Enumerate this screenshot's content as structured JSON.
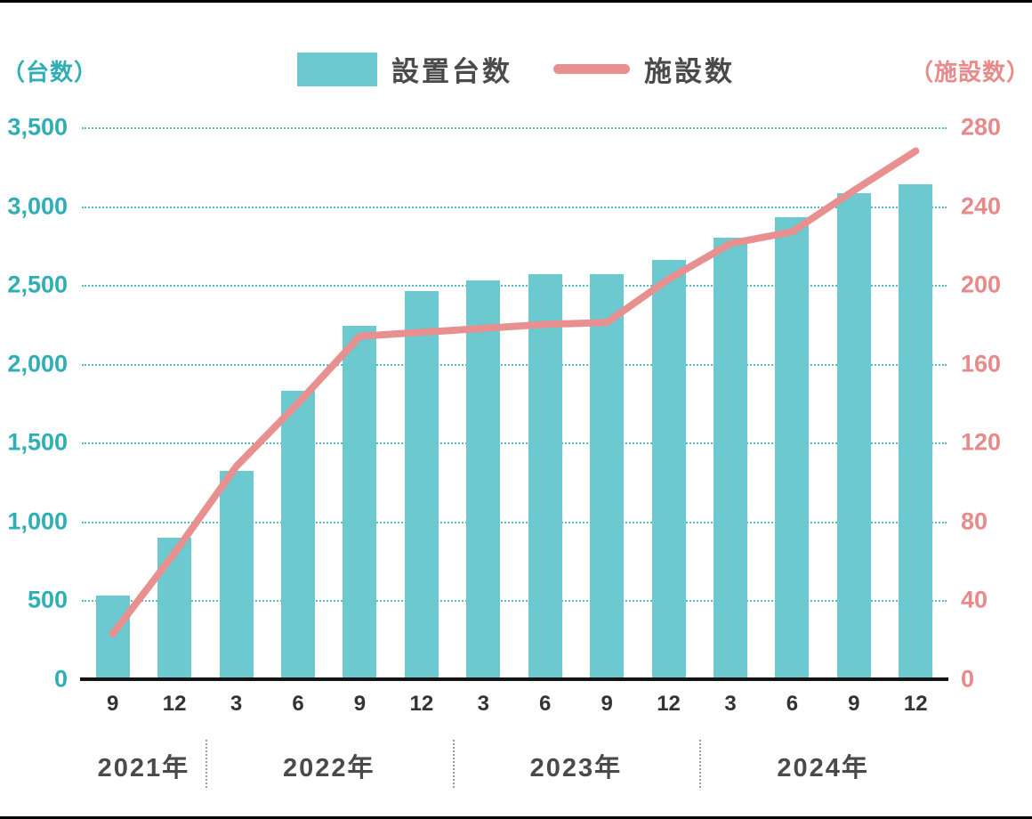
{
  "header": {
    "left_axis_title": "（台数）",
    "right_axis_title": "（施設数）"
  },
  "legend": [
    {
      "label": "設置台数",
      "type": "bar",
      "color": "#6CC9CF"
    },
    {
      "label": "施設数",
      "type": "line",
      "color": "#E89090"
    }
  ],
  "chart_data": {
    "type": "bar+line",
    "title": "",
    "categories": [
      "9",
      "12",
      "3",
      "6",
      "9",
      "12",
      "3",
      "6",
      "9",
      "12",
      "3",
      "6",
      "9",
      "12"
    ],
    "year_groups": [
      {
        "label": "2021年",
        "span": 2
      },
      {
        "label": "2022年",
        "span": 4
      },
      {
        "label": "2023年",
        "span": 4
      },
      {
        "label": "2024年",
        "span": 4
      }
    ],
    "series": [
      {
        "name": "設置台数",
        "type": "bar",
        "axis": "left",
        "color": "#6CC9CF",
        "values": [
          530,
          900,
          1320,
          1830,
          2240,
          2460,
          2530,
          2570,
          2570,
          2660,
          2800,
          2930,
          3080,
          3140
        ]
      },
      {
        "name": "施設数",
        "type": "line",
        "axis": "right",
        "color": "#E89090",
        "values": [
          23,
          64,
          108,
          140,
          174,
          176,
          178,
          180,
          181,
          203,
          221,
          227,
          248,
          268
        ]
      }
    ],
    "left_axis": {
      "title": "（台数）",
      "min": 0,
      "max": 3500,
      "step": 500,
      "ticks": [
        "0",
        "500",
        "1,000",
        "1,500",
        "2,000",
        "2,500",
        "3,000",
        "3,500"
      ],
      "color": "#2FAFB5"
    },
    "right_axis": {
      "title": "（施設数）",
      "min": 0,
      "max": 280,
      "step": 40,
      "ticks": [
        "0",
        "40",
        "80",
        "120",
        "160",
        "200",
        "240",
        "280"
      ],
      "color": "#E88A8A"
    },
    "grid": "dotted horizontal, teal",
    "legend_position": "top center"
  }
}
